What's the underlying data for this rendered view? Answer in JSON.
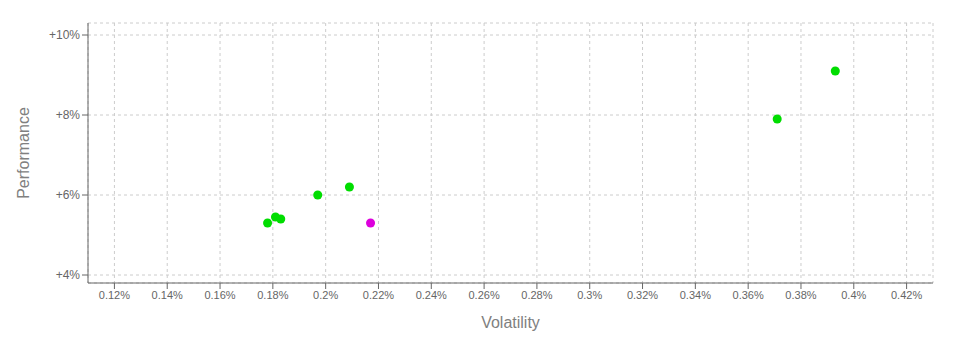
{
  "chart_data": {
    "type": "scatter",
    "xlabel": "Volatility",
    "ylabel": "Performance",
    "xlim": [
      0.11,
      0.43
    ],
    "ylim": [
      0.038,
      0.103
    ],
    "xticks": [
      {
        "value": 0.12,
        "label": "0.12%"
      },
      {
        "value": 0.14,
        "label": "0.14%"
      },
      {
        "value": 0.16,
        "label": "0.16%"
      },
      {
        "value": 0.18,
        "label": "0.18%"
      },
      {
        "value": 0.2,
        "label": "0.2%"
      },
      {
        "value": 0.22,
        "label": "0.22%"
      },
      {
        "value": 0.24,
        "label": "0.24%"
      },
      {
        "value": 0.26,
        "label": "0.26%"
      },
      {
        "value": 0.28,
        "label": "0.28%"
      },
      {
        "value": 0.3,
        "label": "0.3%"
      },
      {
        "value": 0.32,
        "label": "0.32%"
      },
      {
        "value": 0.34,
        "label": "0.34%"
      },
      {
        "value": 0.36,
        "label": "0.36%"
      },
      {
        "value": 0.38,
        "label": "0.38%"
      },
      {
        "value": 0.4,
        "label": "0.4%"
      },
      {
        "value": 0.42,
        "label": "0.42%"
      }
    ],
    "yticks": [
      {
        "value": 0.04,
        "label": "+4%"
      },
      {
        "value": 0.06,
        "label": "+6%"
      },
      {
        "value": 0.08,
        "label": "+8%"
      },
      {
        "value": 0.1,
        "label": "+10%"
      }
    ],
    "grid": true,
    "series": [
      {
        "color": "#00dd00",
        "points": [
          [
            0.178,
            0.053
          ],
          [
            0.181,
            0.0545
          ],
          [
            0.183,
            0.054
          ],
          [
            0.197,
            0.06
          ],
          [
            0.209,
            0.062
          ],
          [
            0.371,
            0.079
          ],
          [
            0.393,
            0.091
          ]
        ]
      },
      {
        "color": "#dd00dd",
        "points": [
          [
            0.217,
            0.053
          ]
        ]
      }
    ]
  }
}
